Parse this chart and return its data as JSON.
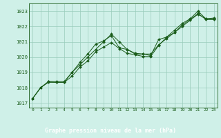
{
  "title": "Graphe pression niveau de la mer (hPa)",
  "bg_color": "#cff0e8",
  "plot_bg_color": "#cff0e8",
  "grid_color": "#99ccbb",
  "line_color": "#1a5c1a",
  "label_bg_color": "#1a5c1a",
  "label_text_color": "#ffffff",
  "xlim": [
    -0.5,
    23.5
  ],
  "ylim": [
    1016.7,
    1023.5
  ],
  "yticks": [
    1017,
    1018,
    1019,
    1020,
    1021,
    1022,
    1023
  ],
  "xticks": [
    0,
    1,
    2,
    3,
    4,
    5,
    6,
    7,
    8,
    9,
    10,
    11,
    12,
    13,
    14,
    15,
    16,
    17,
    18,
    19,
    20,
    21,
    22,
    23
  ],
  "series": [
    [
      1017.3,
      1018.0,
      1018.4,
      1018.35,
      1018.35,
      1019.0,
      1019.65,
      1020.2,
      1020.85,
      1021.05,
      1021.4,
      1020.6,
      1020.5,
      1020.25,
      1020.2,
      1020.1,
      1021.15,
      1021.3,
      1021.75,
      1022.2,
      1022.5,
      1023.0,
      1022.5,
      1022.55
    ],
    [
      1017.3,
      1018.0,
      1018.35,
      1018.35,
      1018.35,
      1018.75,
      1019.35,
      1019.75,
      1020.35,
      1020.65,
      1020.95,
      1020.55,
      1020.25,
      1020.15,
      1020.05,
      1020.05,
      1020.75,
      1021.3,
      1021.6,
      1022.1,
      1022.45,
      1022.85,
      1022.45,
      1022.45
    ],
    [
      1017.3,
      1018.0,
      1018.4,
      1018.4,
      1018.4,
      1019.0,
      1019.5,
      1020.0,
      1020.5,
      1021.0,
      1021.5,
      1021.0,
      1020.5,
      1020.2,
      1020.2,
      1020.2,
      1020.8,
      1021.2,
      1021.6,
      1022.0,
      1022.4,
      1022.8,
      1022.5,
      1022.5
    ]
  ]
}
